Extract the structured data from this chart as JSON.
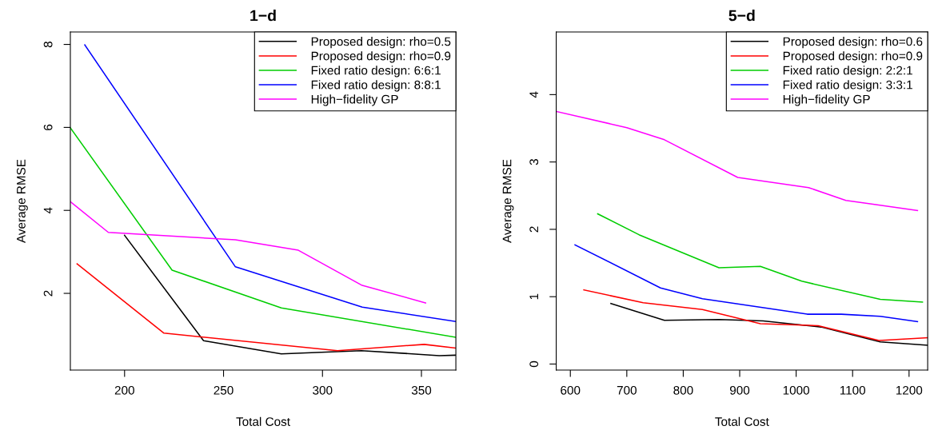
{
  "chart_data": [
    {
      "type": "line",
      "title": "1−d",
      "xlabel": "Total Cost",
      "ylabel": "Average RMSE",
      "xlim": [
        172.6,
        367.4
      ],
      "ylim": [
        0.15,
        8.3
      ],
      "xticks": [
        200,
        250,
        300,
        350
      ],
      "yticks": [
        2,
        4,
        6,
        8
      ],
      "legend": "top right",
      "grid": false,
      "series": [
        {
          "name": "Proposed design: rho=0.5",
          "color": "#000000",
          "x": [
            200,
            239.9,
            279.2,
            319.7,
            359,
            367.4
          ],
          "values": [
            3.4,
            0.86,
            0.54,
            0.62,
            0.5,
            0.51
          ]
        },
        {
          "name": "Proposed design: rho=0.9",
          "color": "#ff0000",
          "x": [
            176,
            219.9,
            307.6,
            351.4,
            367.4
          ],
          "values": [
            2.71,
            1.04,
            0.62,
            0.77,
            0.68
          ]
        },
        {
          "name": "Fixed ratio design: 6:6:1",
          "color": "#00cd00",
          "x": [
            172.6,
            224,
            279.2,
            367.4
          ],
          "values": [
            5.99,
            2.56,
            1.65,
            0.94
          ]
        },
        {
          "name": "Fixed ratio design: 8:8:1",
          "color": "#0000ff",
          "x": [
            179.9,
            256,
            320.1,
            367.4
          ],
          "values": [
            7.99,
            2.64,
            1.67,
            1.32
          ]
        },
        {
          "name": "High−fidelity GP",
          "color": "#ff00ff",
          "x": [
            172.6,
            191.8,
            256,
            287.8,
            319.7,
            352.1
          ],
          "values": [
            4.21,
            3.47,
            3.29,
            3.04,
            2.2,
            1.77
          ]
        }
      ]
    },
    {
      "type": "line",
      "title": "5−d",
      "xlabel": "Total Cost",
      "ylabel": "Average RMSE",
      "xlim": [
        575,
        1233
      ],
      "ylim": [
        -0.09,
        4.93
      ],
      "xticks": [
        600,
        700,
        800,
        900,
        1000,
        1100,
        1200
      ],
      "yticks": [
        0,
        1,
        2,
        3,
        4
      ],
      "legend": "top right",
      "grid": false,
      "series": [
        {
          "name": "Proposed design: rho=0.6",
          "color": "#000000",
          "x": [
            671.8,
            766.6,
            863.3,
            941.5,
            1044,
            1149,
            1233
          ],
          "values": [
            0.9,
            0.65,
            0.66,
            0.64,
            0.55,
            0.33,
            0.28
          ]
        },
        {
          "name": "Proposed design: rho=0.9",
          "color": "#ff0000",
          "x": [
            623.9,
            729,
            834,
            936.6,
            1039,
            1146.7,
            1233
          ],
          "values": [
            1.1,
            0.91,
            0.81,
            0.6,
            0.57,
            0.35,
            0.39
          ]
        },
        {
          "name": "Fixed ratio design: 2:2:1",
          "color": "#00cd00",
          "x": [
            648.4,
            721.6,
            863.3,
            936.6,
            1009.9,
            1149,
            1223.8
          ],
          "values": [
            2.23,
            1.92,
            1.43,
            1.45,
            1.23,
            0.96,
            0.92
          ]
        },
        {
          "name": "Fixed ratio design: 3:3:1",
          "color": "#0000ff",
          "x": [
            608.3,
            759.7,
            834,
            1019.6,
            1080,
            1149,
            1215
          ],
          "values": [
            1.77,
            1.13,
            0.97,
            0.74,
            0.74,
            0.71,
            0.63
          ]
        },
        {
          "name": "High−fidelity GP",
          "color": "#ff00ff",
          "x": [
            575,
            700,
            766.6,
            896.5,
            1022,
            1088,
            1215
          ],
          "values": [
            3.75,
            3.51,
            3.33,
            2.77,
            2.62,
            2.43,
            2.28
          ]
        }
      ]
    }
  ]
}
